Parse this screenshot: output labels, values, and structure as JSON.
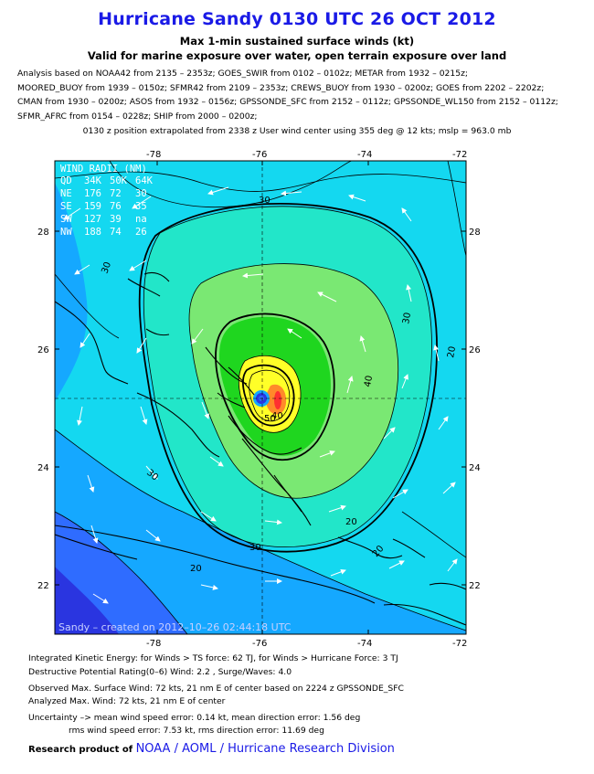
{
  "header": {
    "title": "Hurricane Sandy 0130 UTC 26 OCT 2012",
    "subtitle": "Max 1-min sustained surface winds (kt)",
    "subtitle2": "Valid for marine exposure over water, open terrain exposure over land",
    "analysis_lines": [
      "Analysis based on NOAA42 from 2135 – 2353z; GOES_SWIR from 0102 – 0102z; METAR from 1932 – 0215z;",
      "MOORED_BUOY from 1939 – 0150z; SFMR42 from 2109 – 2353z; CREWS_BUOY from 1930 – 0200z; GOES from 2202 – 2202z;",
      "CMAN from 1930 – 0200z; ASOS from 1932 – 0156z; GPSSONDE_SFC from 2152 – 0112z; GPSSONDE_WL150 from 2152 – 0112z;",
      "SFMR_AFRC from 0154 – 0228z; SHIP from 2000 – 0200z;"
    ],
    "position_line": "0130 z position extrapolated from 2338 z User wind center using 355 deg @ 12 kts; mslp = 963.0 mb"
  },
  "map": {
    "lon_ticks": [
      "-78",
      "-76",
      "-74",
      "-72"
    ],
    "lat_ticks": [
      "28",
      "26",
      "24",
      "22"
    ],
    "lon_range": [
      -79.6,
      -71.8
    ],
    "lat_range": [
      21.2,
      29.2
    ],
    "center": {
      "lon": -75.8,
      "lat": 25.2
    },
    "contour_labels": [
      "30",
      "30",
      "40",
      "30",
      "40",
      "30",
      "20",
      "30",
      "20",
      "20",
      "50",
      "20"
    ],
    "wind_radii": {
      "title": "WIND RADII (NM)",
      "header": [
        "QD",
        "34K",
        "50K",
        "64K"
      ],
      "rows": [
        [
          "NE",
          "176",
          "72",
          "30"
        ],
        [
          "SE",
          "159",
          "76",
          "35"
        ],
        [
          "SW",
          "127",
          "39",
          "na"
        ],
        [
          "NW",
          "188",
          "74",
          "26"
        ]
      ]
    },
    "footer_text": "Sandy – created on 2012–10–26 02:44:18 UTC",
    "colors": {
      "deep_blue": "#2a35e0",
      "blue": "#2f6cff",
      "light_blue": "#15a8ff",
      "cyan": "#14d8f0",
      "aqua": "#22e6c9",
      "green_light": "#7ae873",
      "green": "#1fd61f",
      "yellow": "#ffff28",
      "orange": "#ff8a2a",
      "red": "#ff3030"
    }
  },
  "footer": {
    "ike": "Integrated Kinetic Energy: for Winds > TS force: 62 TJ, for Winds > Hurricane Force: 3 TJ",
    "dpr": "Destructive Potential Rating(0–6)  Wind: 2.2 , Surge/Waves: 4.0",
    "observed": "Observed Max. Surface Wind: 72 kts, 21 nm E of center based on 2224 z GPSSONDE_SFC",
    "analyzed": "Analyzed Max. Wind: 72 kts, 21 nm  E of center",
    "uncertainty": "Uncertainty –> mean wind speed error: 0.14 kt, mean direction error: 1.56 deg",
    "rms": "rms wind speed error: 7.53 kt, rms direction error: 11.69 deg",
    "credit_prefix": "Research product of",
    "credit_org": "NOAA / AOML / Hurricane Research Division"
  }
}
